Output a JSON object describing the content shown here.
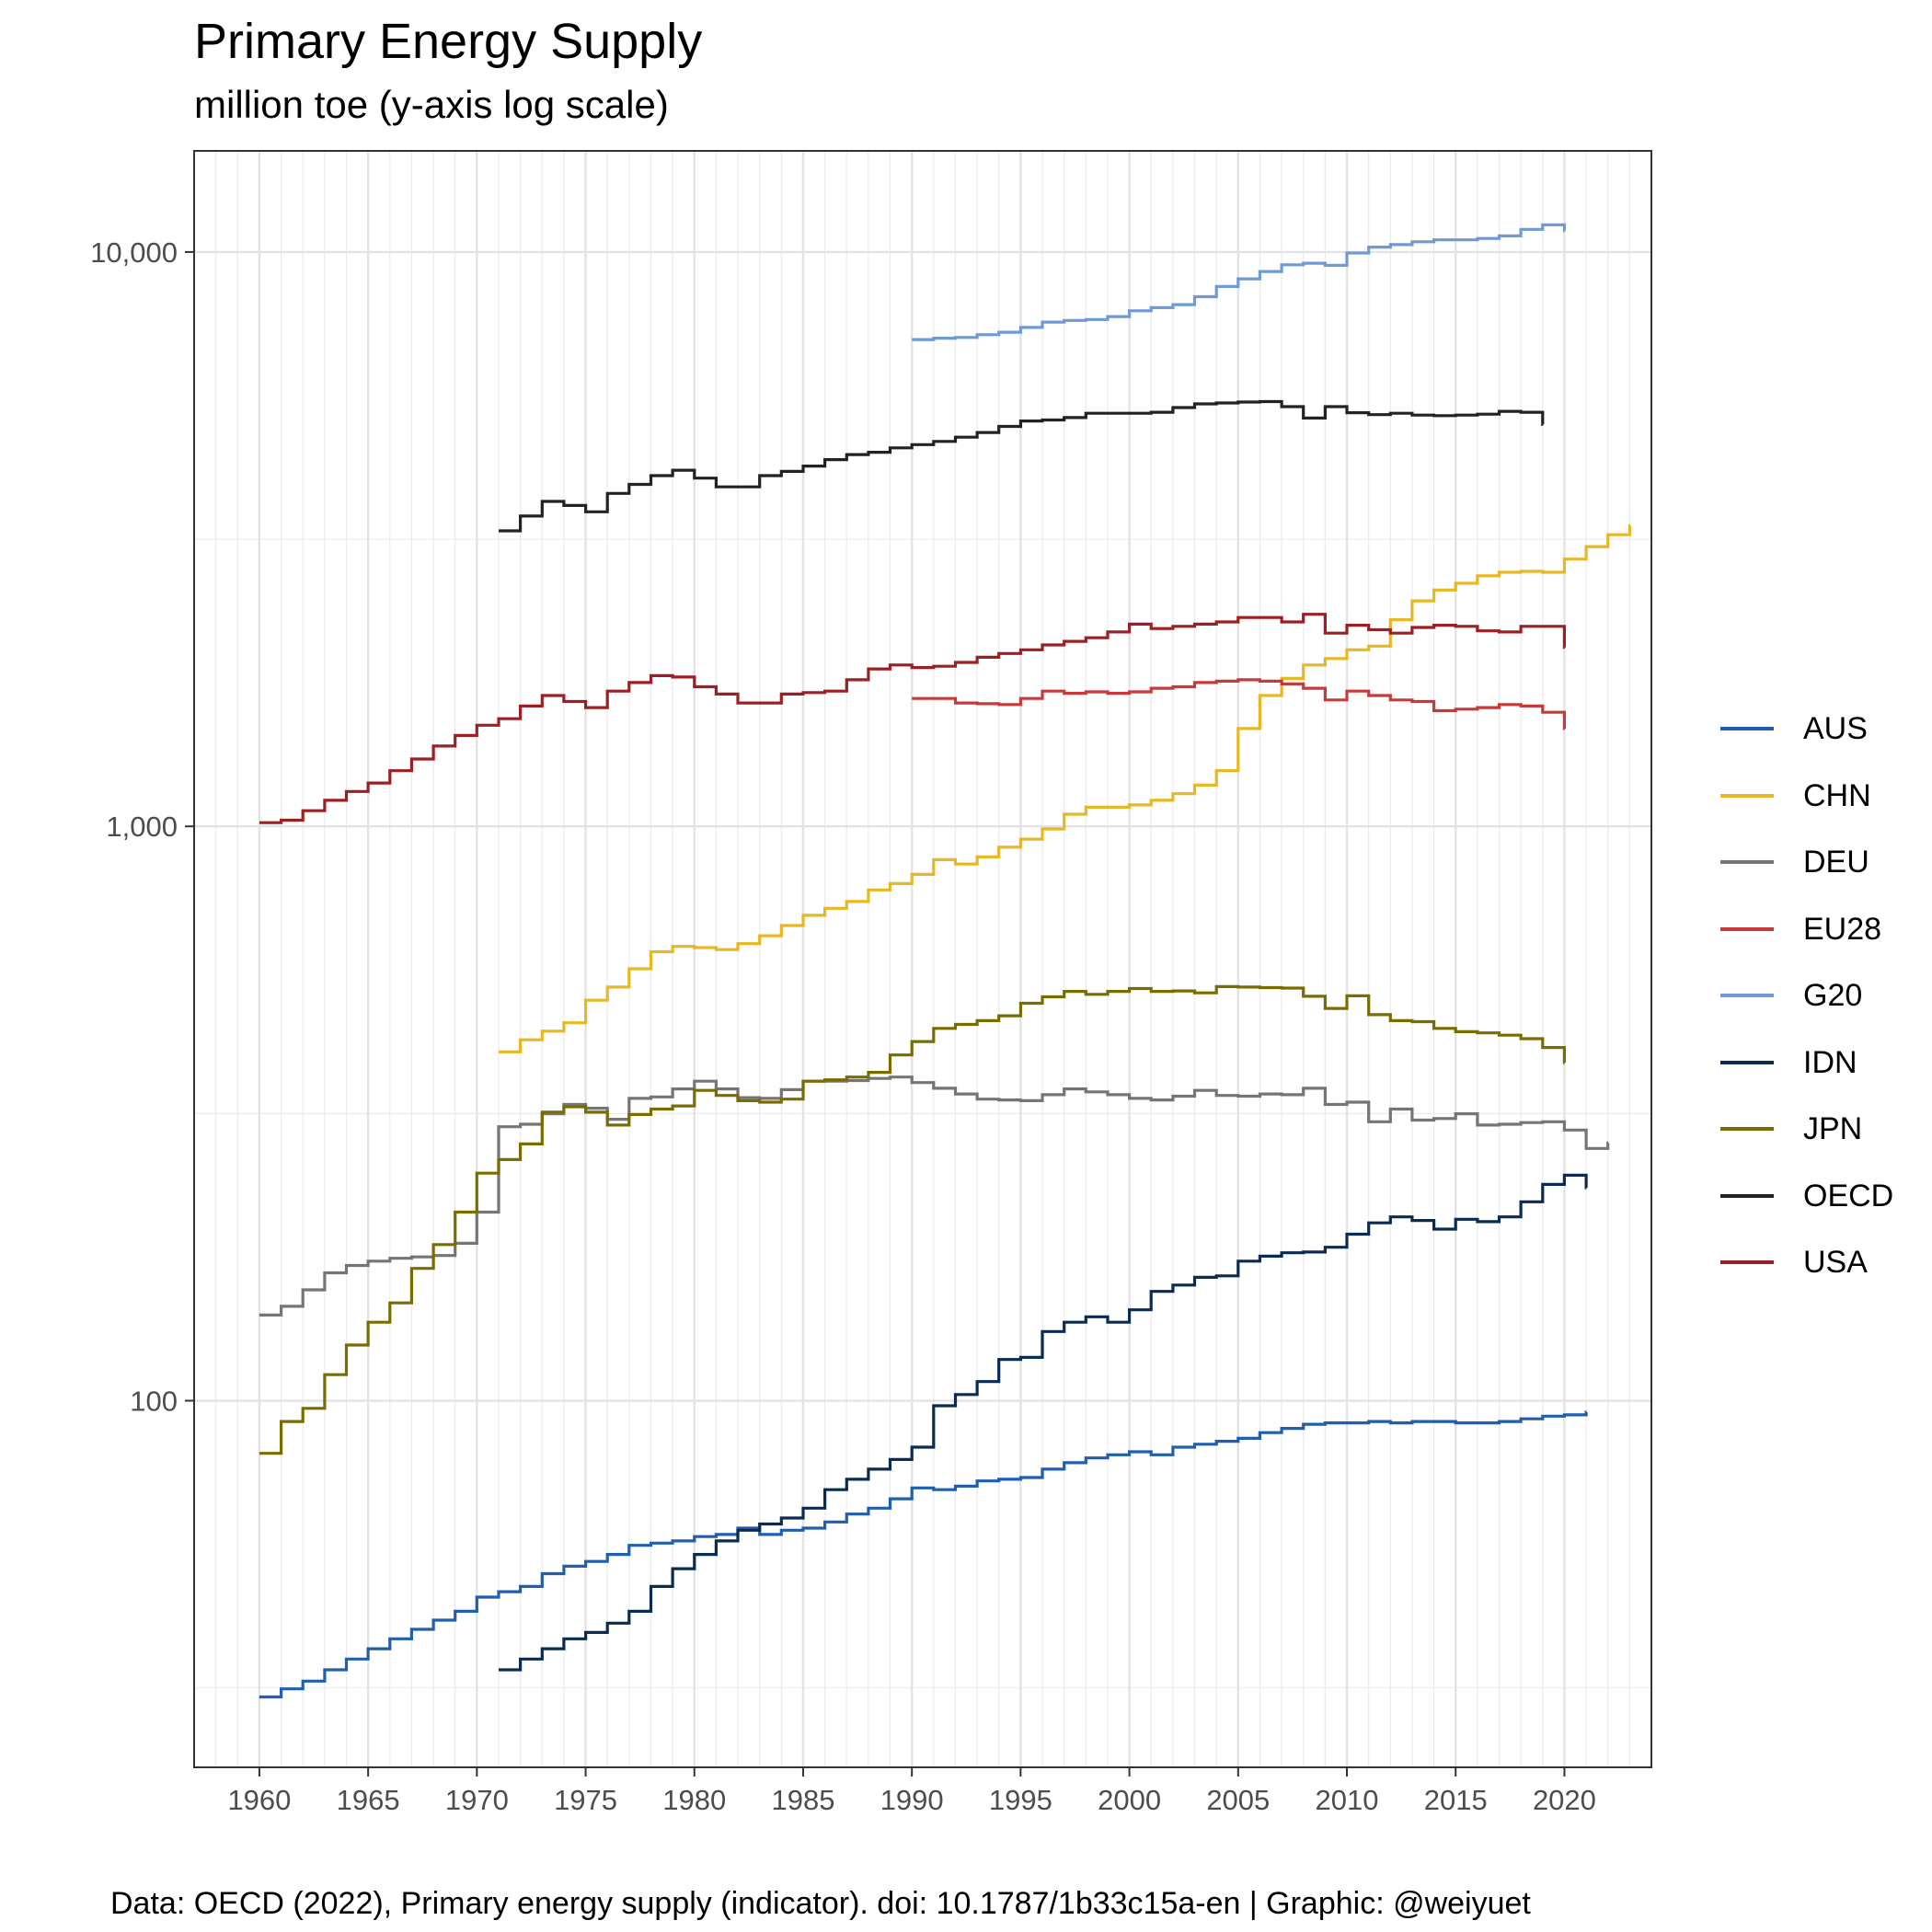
{
  "title": "Primary Energy Supply",
  "subtitle": "million toe (y-axis log scale)",
  "caption": "Data: OECD (2022), Primary energy supply (indicator). doi: 10.1787/1b33c15a-en | Graphic: @weiyuet",
  "chart_data": {
    "type": "line",
    "step": true,
    "title": "Primary Energy Supply",
    "subtitle": "million toe (y-axis log scale)",
    "xlabel": "",
    "ylabel": "",
    "y_scale": "log10",
    "xlim": [
      1957,
      2024
    ],
    "ylim": [
      23,
      15000
    ],
    "x_ticks": [
      1960,
      1965,
      1970,
      1975,
      1980,
      1985,
      1990,
      1995,
      2000,
      2005,
      2010,
      2015,
      2020
    ],
    "x_tick_labels": [
      "1960",
      "1965",
      "1970",
      "1975",
      "1980",
      "1985",
      "1990",
      "1995",
      "2000",
      "2005",
      "2010",
      "2015",
      "2020"
    ],
    "y_ticks": [
      100,
      1000,
      10000
    ],
    "y_tick_labels": [
      "100",
      "1,000",
      "10,000"
    ],
    "grid": true,
    "legend_position": "right",
    "series": [
      {
        "name": "AUS",
        "color": "#1f5fad",
        "x_start": 1960,
        "values": [
          30.5,
          31.5,
          32.5,
          34,
          35.5,
          37,
          38.5,
          40,
          41.5,
          43,
          45.5,
          46.5,
          47.5,
          50,
          51.5,
          52.5,
          54,
          56,
          56.5,
          57,
          58,
          58.5,
          60,
          58.5,
          59.5,
          60,
          61.5,
          63.5,
          65,
          67.5,
          70.5,
          70,
          71,
          72.5,
          73,
          73.5,
          76,
          78,
          79.5,
          80.5,
          81.5,
          80.5,
          83,
          84,
          85,
          86,
          88,
          89.5,
          91,
          91.5,
          91.5,
          92,
          91.5,
          92,
          92,
          91.5,
          91.5,
          92,
          93,
          94,
          94.5,
          95.5
        ]
      },
      {
        "name": "CHN",
        "color": "#e8b724",
        "x_start": 1971,
        "values": [
          405,
          425,
          440,
          455,
          498,
          525,
          565,
          605,
          618,
          615,
          610,
          625,
          645,
          672,
          700,
          720,
          740,
          775,
          795,
          825,
          875,
          860,
          885,
          920,
          950,
          990,
          1050,
          1080,
          1080,
          1090,
          1110,
          1140,
          1180,
          1250,
          1480,
          1690,
          1810,
          1910,
          1960,
          2030,
          2060,
          2290,
          2470,
          2580,
          2650,
          2730,
          2770,
          2780,
          2770,
          2920,
          3070,
          3220,
          3340
        ]
      },
      {
        "name": "DEU",
        "color": "#757575",
        "x_start": 1960,
        "values": [
          141,
          146,
          156,
          167,
          172,
          175,
          177,
          178,
          179,
          188,
          213,
          300,
          303,
          316,
          328,
          323,
          309,
          336,
          338,
          349,
          360,
          349,
          337,
          336,
          348,
          360,
          360,
          361,
          364,
          366,
          358,
          350,
          342,
          335,
          334,
          333,
          341,
          349,
          345,
          341,
          336,
          334,
          339,
          347,
          340,
          339,
          342,
          341,
          350,
          328,
          331,
          306,
          322,
          308,
          310,
          316,
          302,
          303,
          305,
          306,
          296,
          275,
          281
        ]
      },
      {
        "name": "EU28",
        "color": "#c83a3a",
        "x_start": 1990,
        "values": [
          1670,
          1670,
          1640,
          1635,
          1630,
          1670,
          1720,
          1705,
          1715,
          1705,
          1715,
          1740,
          1750,
          1780,
          1790,
          1800,
          1790,
          1770,
          1740,
          1660,
          1720,
          1690,
          1660,
          1650,
          1590,
          1600,
          1610,
          1630,
          1620,
          1580,
          1480
        ]
      },
      {
        "name": "G20",
        "color": "#6f9ad6",
        "x_start": 1990,
        "values": [
          7040,
          7080,
          7100,
          7180,
          7250,
          7390,
          7550,
          7600,
          7630,
          7720,
          7900,
          8000,
          8100,
          8360,
          8710,
          8980,
          9250,
          9500,
          9560,
          9480,
          9960,
          10200,
          10300,
          10420,
          10500,
          10500,
          10560,
          10670,
          10950,
          11150,
          10900
        ]
      },
      {
        "name": "IDN",
        "color": "#0a2b52",
        "x_start": 1971,
        "values": [
          34,
          35.5,
          37,
          38.5,
          39.5,
          41,
          43,
          47.5,
          51,
          54,
          57,
          59.5,
          61,
          62.5,
          65,
          70,
          73,
          76,
          79,
          83,
          98,
          102.5,
          108,
          118,
          119,
          132,
          137,
          140,
          137,
          144,
          155,
          159,
          164,
          165,
          175,
          178.5,
          181,
          181.5,
          185,
          195,
          204,
          209,
          206,
          199,
          207,
          205,
          209,
          222,
          238,
          247,
          235
        ]
      },
      {
        "name": "JPN",
        "color": "#7a6d00",
        "x_start": 1960,
        "values": [
          81,
          92,
          97,
          111,
          125,
          137,
          148,
          170,
          187,
          213,
          249,
          263,
          280,
          318,
          325,
          318,
          302,
          315,
          322,
          326,
          347,
          340,
          333,
          331,
          335,
          360,
          362,
          366,
          373,
          400,
          422,
          445,
          452,
          459,
          468,
          492,
          505,
          516,
          510,
          516,
          522,
          516,
          517,
          513,
          526,
          525,
          524,
          523,
          506,
          482,
          507,
          470,
          459,
          457,
          445,
          439,
          437,
          433,
          427,
          412,
          388
        ]
      },
      {
        "name": "OECD",
        "color": "#222222",
        "x_start": 1971,
        "values": [
          3270,
          3470,
          3680,
          3620,
          3530,
          3800,
          3940,
          4080,
          4170,
          4040,
          3900,
          3900,
          4080,
          4150,
          4240,
          4350,
          4440,
          4480,
          4560,
          4620,
          4680,
          4760,
          4850,
          4970,
          5080,
          5100,
          5150,
          5240,
          5240,
          5240,
          5260,
          5360,
          5440,
          5460,
          5480,
          5490,
          5380,
          5140,
          5380,
          5250,
          5210,
          5240,
          5200,
          5190,
          5200,
          5220,
          5280,
          5260,
          5010
        ]
      },
      {
        "name": "USA",
        "color": "#9b1f23",
        "x_start": 1960,
        "values": [
          1015,
          1025,
          1065,
          1110,
          1150,
          1190,
          1250,
          1310,
          1380,
          1440,
          1500,
          1540,
          1620,
          1690,
          1650,
          1610,
          1720,
          1780,
          1830,
          1820,
          1750,
          1700,
          1640,
          1640,
          1700,
          1710,
          1720,
          1800,
          1880,
          1910,
          1890,
          1900,
          1930,
          1970,
          2000,
          2030,
          2070,
          2100,
          2130,
          2180,
          2250,
          2210,
          2230,
          2250,
          2270,
          2310,
          2310,
          2270,
          2340,
          2170,
          2240,
          2200,
          2170,
          2220,
          2240,
          2230,
          2190,
          2180,
          2230,
          2230,
          2050
        ]
      }
    ]
  }
}
